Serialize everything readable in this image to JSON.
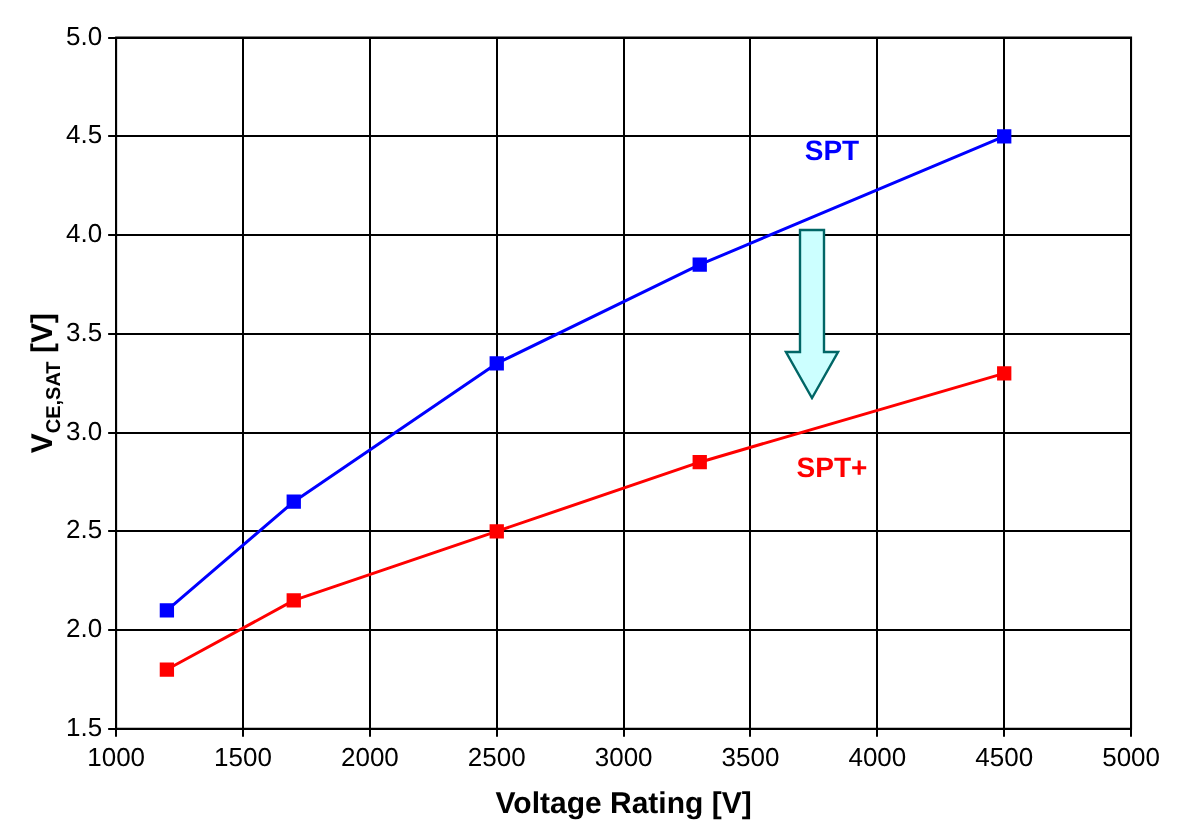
{
  "chart_data": {
    "type": "line",
    "xlabel": "Voltage Rating [V]",
    "ylabel": "V$_{CE,SAT}$ [V]",
    "x": [
      1200,
      1700,
      2500,
      3300,
      4500
    ],
    "series": [
      {
        "name": "SPT",
        "color": "#0000ff",
        "values": [
          2.1,
          2.65,
          3.35,
          3.85,
          4.5
        ]
      },
      {
        "name": "SPT+",
        "color": "#ff0000",
        "values": [
          1.8,
          2.15,
          2.5,
          2.85,
          3.3
        ]
      }
    ],
    "xlim": [
      1000,
      5000
    ],
    "xticks": [
      1000,
      1500,
      2000,
      2500,
      3000,
      3500,
      4000,
      4500,
      5000
    ],
    "ylim": [
      1.5,
      5.0
    ],
    "yticks": [
      {
        "value": 1.5,
        "label": "1.5"
      },
      {
        "value": 2.0,
        "label": "2.0"
      },
      {
        "value": 2.5,
        "label": "2.5"
      },
      {
        "value": 3.0,
        "label": "3.0"
      },
      {
        "value": 3.5,
        "label": "3.5"
      },
      {
        "value": 4.0,
        "label": "4.0"
      },
      {
        "value": 4.5,
        "label": "4.5"
      },
      {
        "value": 5.0,
        "label": "5.0"
      }
    ],
    "grid": true,
    "legend": false,
    "marker": "square",
    "line_style": "solid"
  }
}
